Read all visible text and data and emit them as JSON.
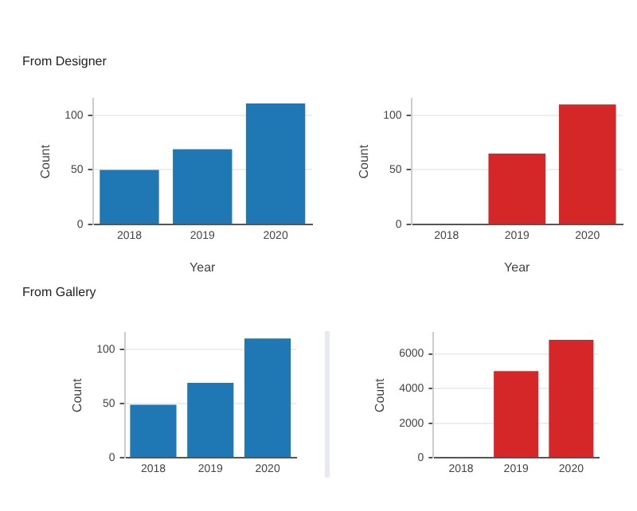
{
  "chart_data": [
    {
      "type": "bar",
      "title": "From Designer",
      "categories": [
        "2018",
        "2019",
        "2020"
      ],
      "values": [
        50,
        69,
        111
      ],
      "color": "#1f77b4",
      "xlabel": "Year",
      "ylabel": "Count",
      "ylim": [
        0,
        115
      ],
      "yticks": [
        0,
        50,
        100
      ],
      "grid": "y"
    },
    {
      "type": "bar",
      "categories": [
        "2018",
        "2019",
        "2020"
      ],
      "values": [
        null,
        65,
        110
      ],
      "color": "#d62728",
      "xlabel": "Year",
      "ylabel": "Count",
      "ylim": [
        0,
        115
      ],
      "yticks": [
        0,
        50,
        100
      ],
      "grid": "y"
    },
    {
      "type": "bar",
      "title": "From Gallery",
      "categories": [
        "2018",
        "2019",
        "2020"
      ],
      "values": [
        49,
        69,
        110
      ],
      "color": "#1f77b4",
      "ylabel": "Count",
      "ylim": [
        0,
        115
      ],
      "yticks": [
        0,
        50,
        100
      ],
      "grid": "y"
    },
    {
      "type": "bar",
      "categories": [
        "2018",
        "2019",
        "2020"
      ],
      "values": [
        null,
        5000,
        6800
      ],
      "color": "#d62728",
      "ylabel": "Count",
      "ylim": [
        0,
        7200
      ],
      "yticks": [
        0,
        2000,
        4000,
        6000
      ],
      "grid": "y"
    }
  ]
}
